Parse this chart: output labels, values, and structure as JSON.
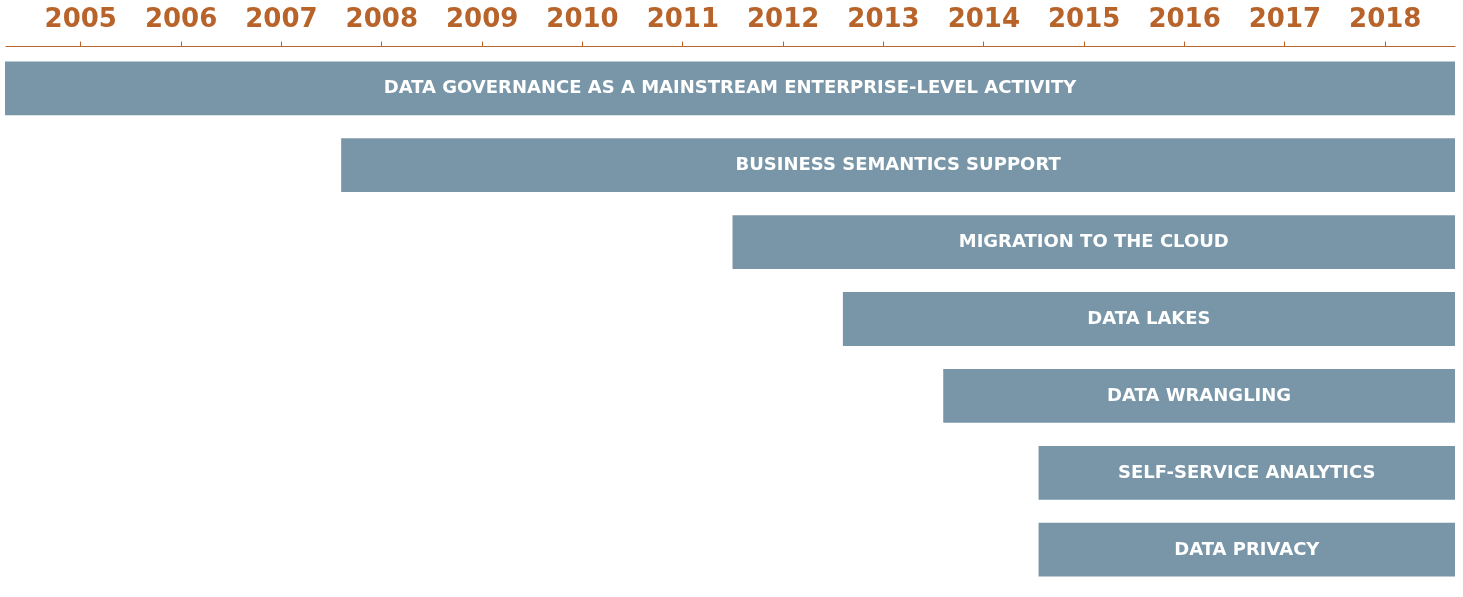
{
  "chart_data": {
    "type": "bar",
    "orientation": "horizontal",
    "categories": [
      "DATA GOVERNANCE AS A MAINSTREAM ENTERPRISE-LEVEL ACTIVITY",
      "BUSINESS SEMANTICS SUPPORT",
      "MIGRATION TO THE CLOUD",
      "DATA LAKES",
      "DATA WRANGLING",
      "SELF-SERVICE ANALYTICS",
      "DATA PRIVACY"
    ],
    "base": [
      2004.25,
      2007.6,
      2011.5,
      2012.6,
      2013.6,
      2014.55,
      2014.55
    ],
    "values": [
      14.45,
      11.1,
      7.2,
      6.1,
      5.1,
      4.15,
      4.15
    ],
    "color": "#7896a8",
    "xlim": [
      2004.25,
      2018.7
    ],
    "xticks": [
      2005,
      2006,
      2007,
      2008,
      2009,
      2010,
      2011,
      2012,
      2013,
      2014,
      2015,
      2016,
      2017,
      2018
    ],
    "grid": false
  }
}
